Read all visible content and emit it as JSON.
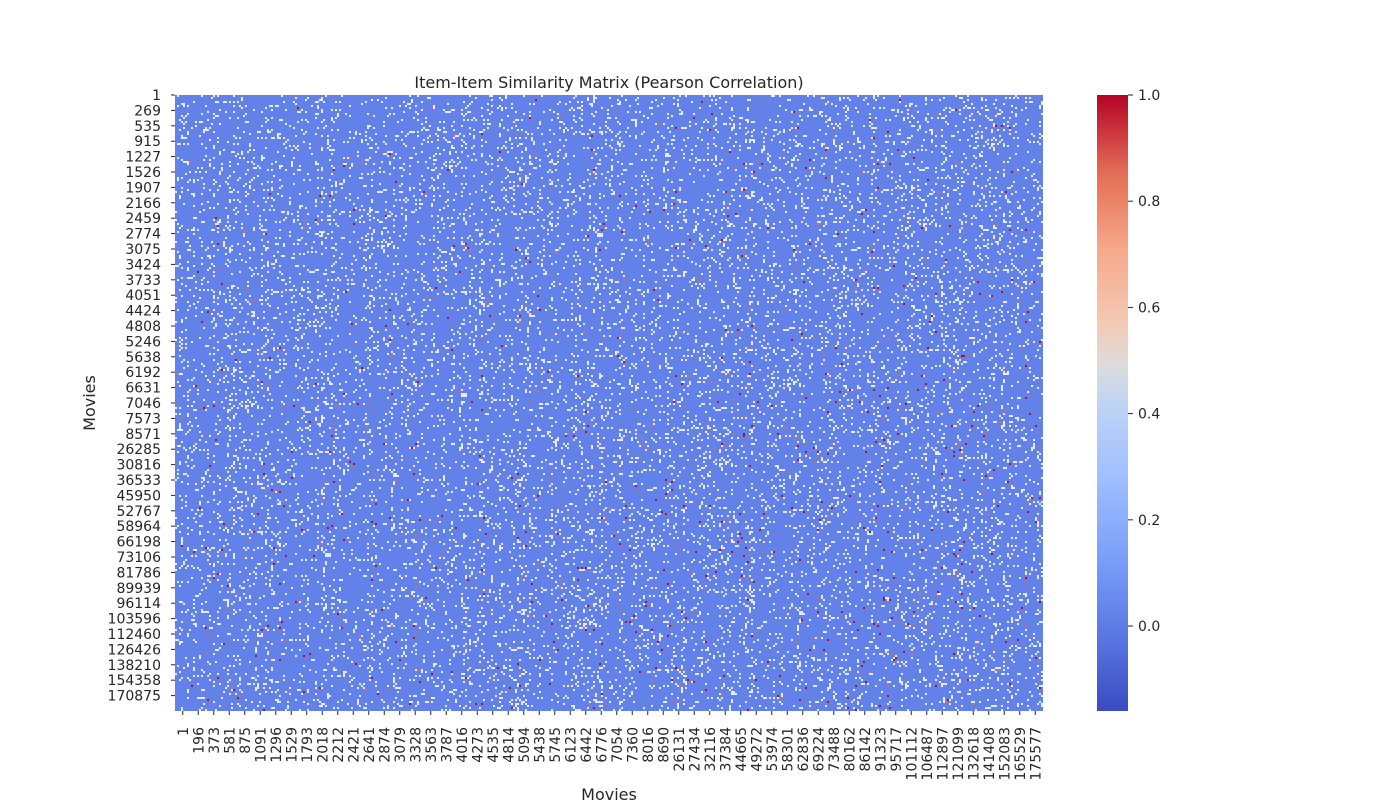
{
  "chart_data": {
    "type": "heatmap",
    "title": "Item-Item Similarity Matrix (Pearson Correlation)",
    "xlabel": "Movies",
    "ylabel": "Movies",
    "x_tick_labels": [
      "1",
      "196",
      "373",
      "581",
      "875",
      "1091",
      "1296",
      "1529",
      "1793",
      "2018",
      "2212",
      "2421",
      "2641",
      "2874",
      "3079",
      "3328",
      "3563",
      "3787",
      "4016",
      "4273",
      "4535",
      "4814",
      "5094",
      "5438",
      "5745",
      "6123",
      "6442",
      "6776",
      "7054",
      "7360",
      "8016",
      "8690",
      "26131",
      "27434",
      "32116",
      "37384",
      "44665",
      "49272",
      "53974",
      "58301",
      "62836",
      "69224",
      "73488",
      "80162",
      "86142",
      "91323",
      "95717",
      "101112",
      "106487",
      "112897",
      "121099",
      "132618",
      "141408",
      "152083",
      "165529",
      "175577"
    ],
    "y_tick_labels": [
      "1",
      "269",
      "535",
      "915",
      "1227",
      "1526",
      "1907",
      "2166",
      "2459",
      "2774",
      "3075",
      "3424",
      "3733",
      "4051",
      "4424",
      "4808",
      "5246",
      "5638",
      "6192",
      "6631",
      "7046",
      "7573",
      "8571",
      "26285",
      "30816",
      "36533",
      "45950",
      "52767",
      "58964",
      "66198",
      "73106",
      "81786",
      "89939",
      "96114",
      "103596",
      "112460",
      "126426",
      "138210",
      "154358",
      "170875"
    ],
    "colorbar": {
      "colormap": "coolwarm",
      "range": [
        -0.16,
        1.0
      ],
      "ticks": [
        "0.0",
        "0.2",
        "0.4",
        "0.6",
        "0.8",
        "1.0"
      ],
      "tick_values": [
        0.0,
        0.2,
        0.4,
        0.6,
        0.8,
        1.0
      ]
    },
    "dominant_value": 0.0,
    "colors": {
      "background_cell": "#6282ea",
      "sparse_light": "#ffffff",
      "strong_positive": "#b40426",
      "moderate_positive": "#e26952"
    }
  }
}
